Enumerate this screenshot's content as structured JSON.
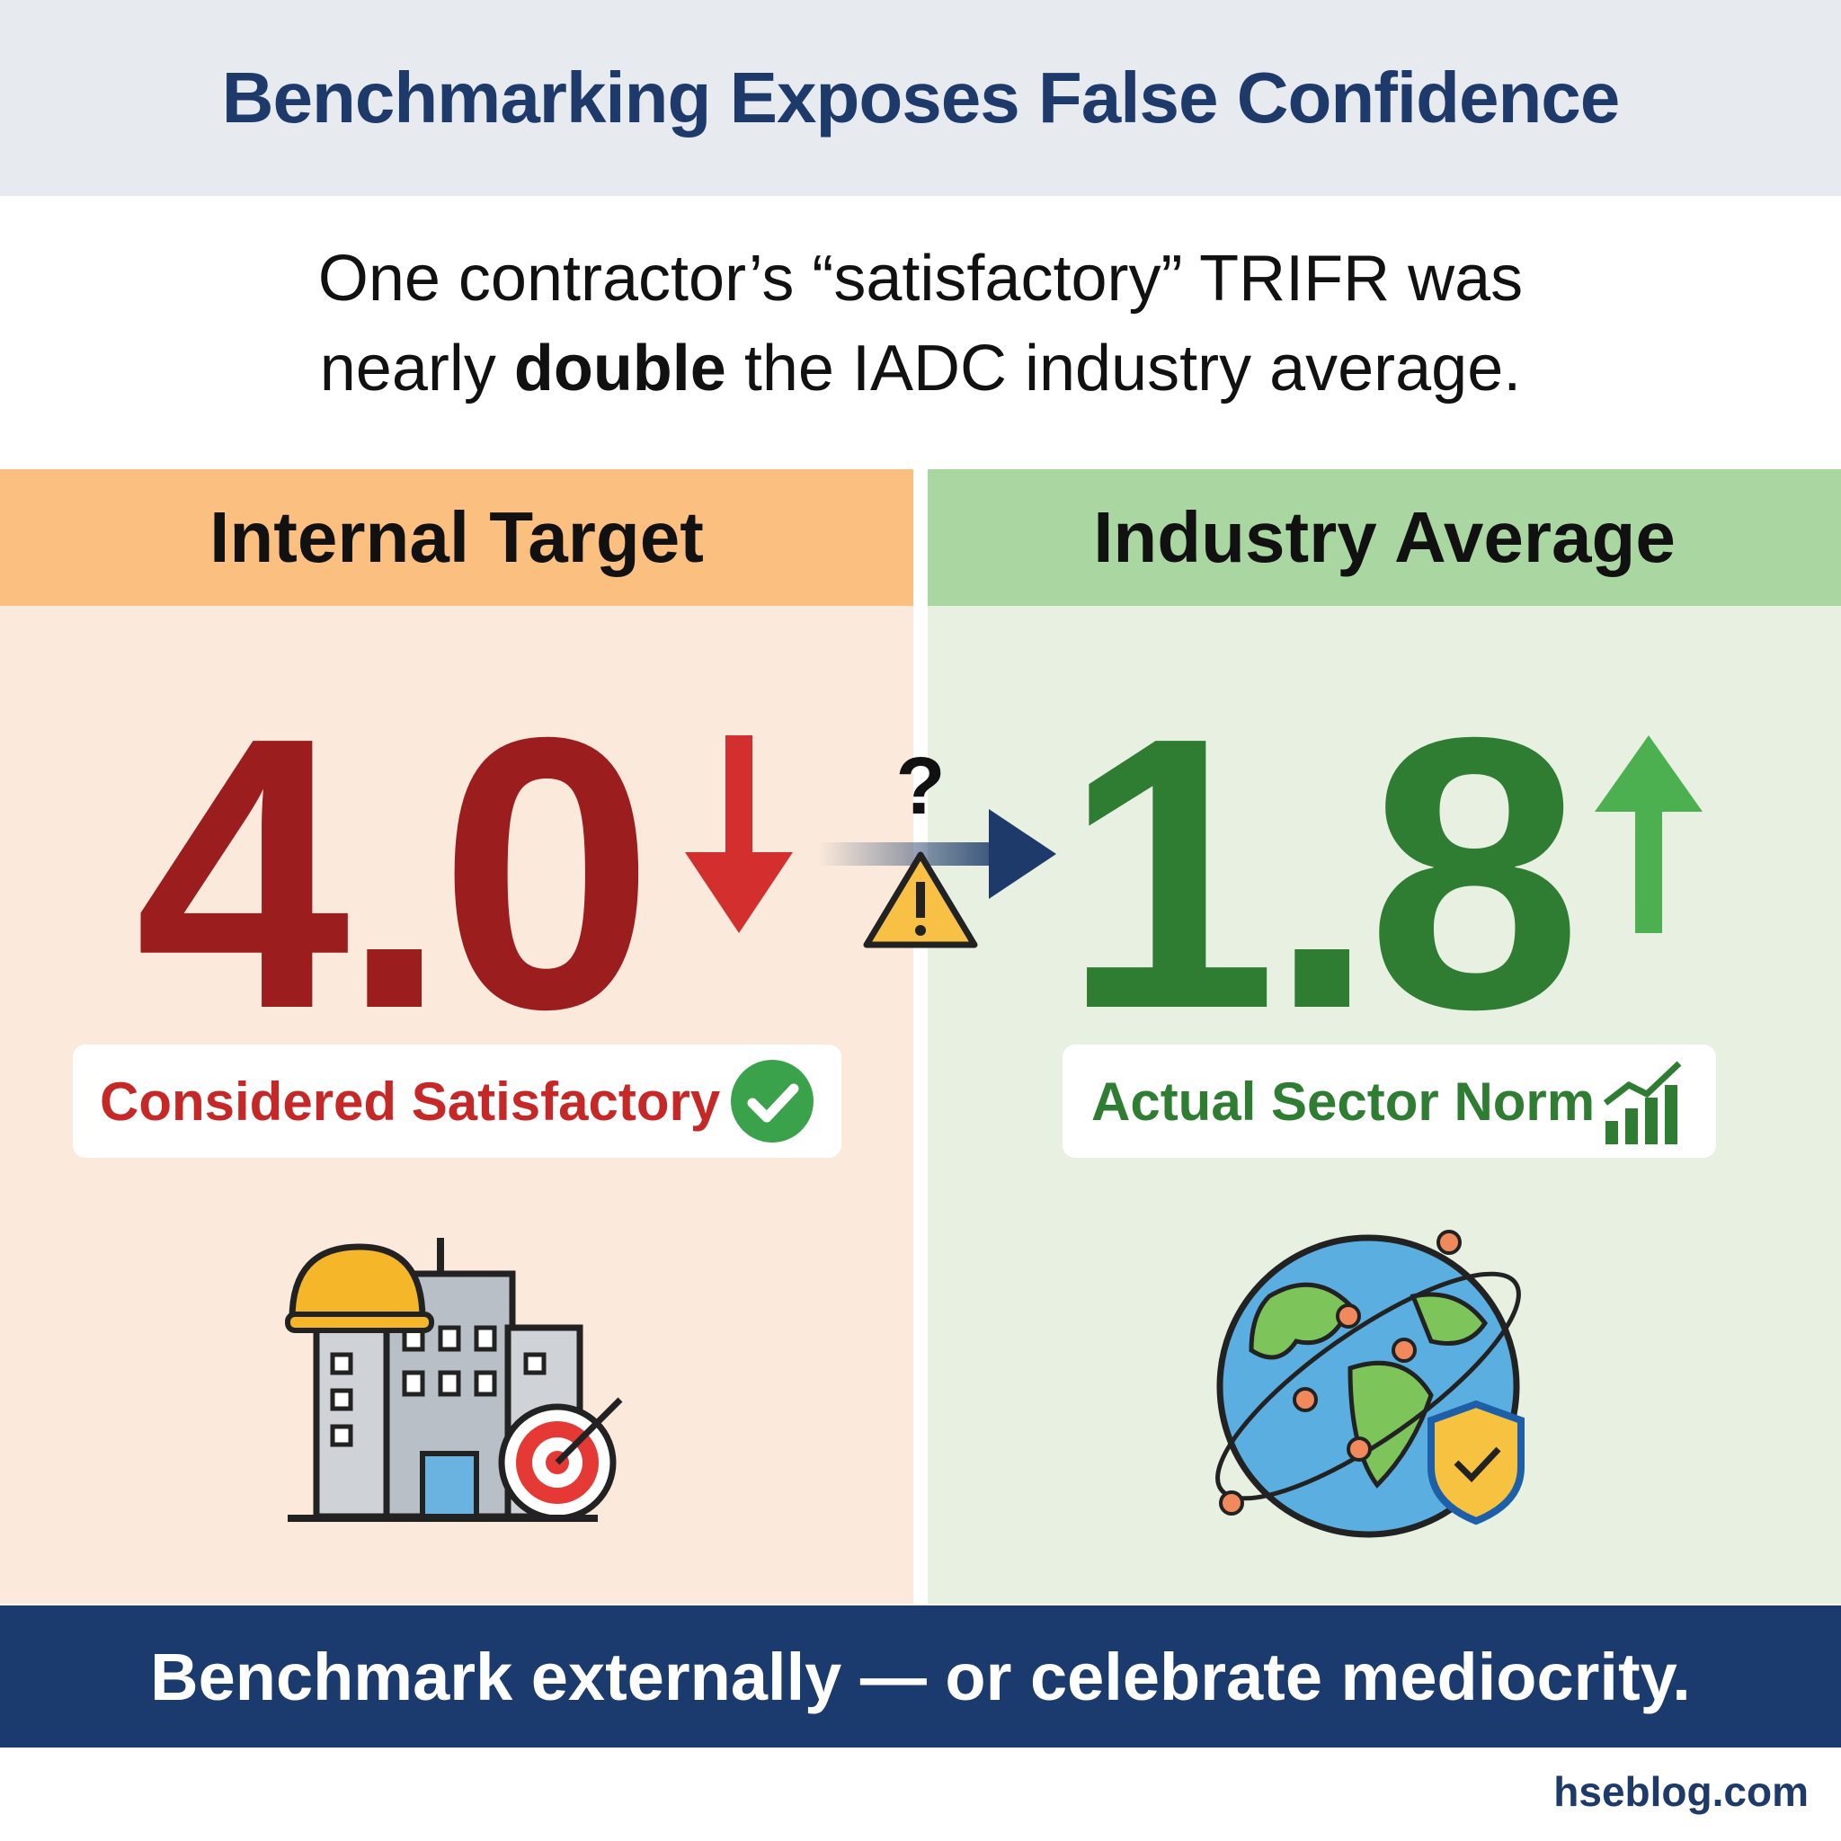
{
  "header": {
    "title": "Benchmarking Exposes False Confidence"
  },
  "intro": {
    "parts": [
      "One contractor’s “satisfactory” TRIFR was",
      "nearly",
      "double",
      "the IADC industry average."
    ]
  },
  "left_panel": {
    "heading": "Internal Target",
    "value": "4.0",
    "badge": "Considered Satisfactory"
  },
  "right_panel": {
    "heading": "Industry Average",
    "value": "1.8",
    "badge": "Actual Sector Norm"
  },
  "comparison": {
    "symbol": "?"
  },
  "footer": {
    "text": "Benchmark externally — or celebrate mediocrity."
  },
  "source": "hseblog.com"
}
